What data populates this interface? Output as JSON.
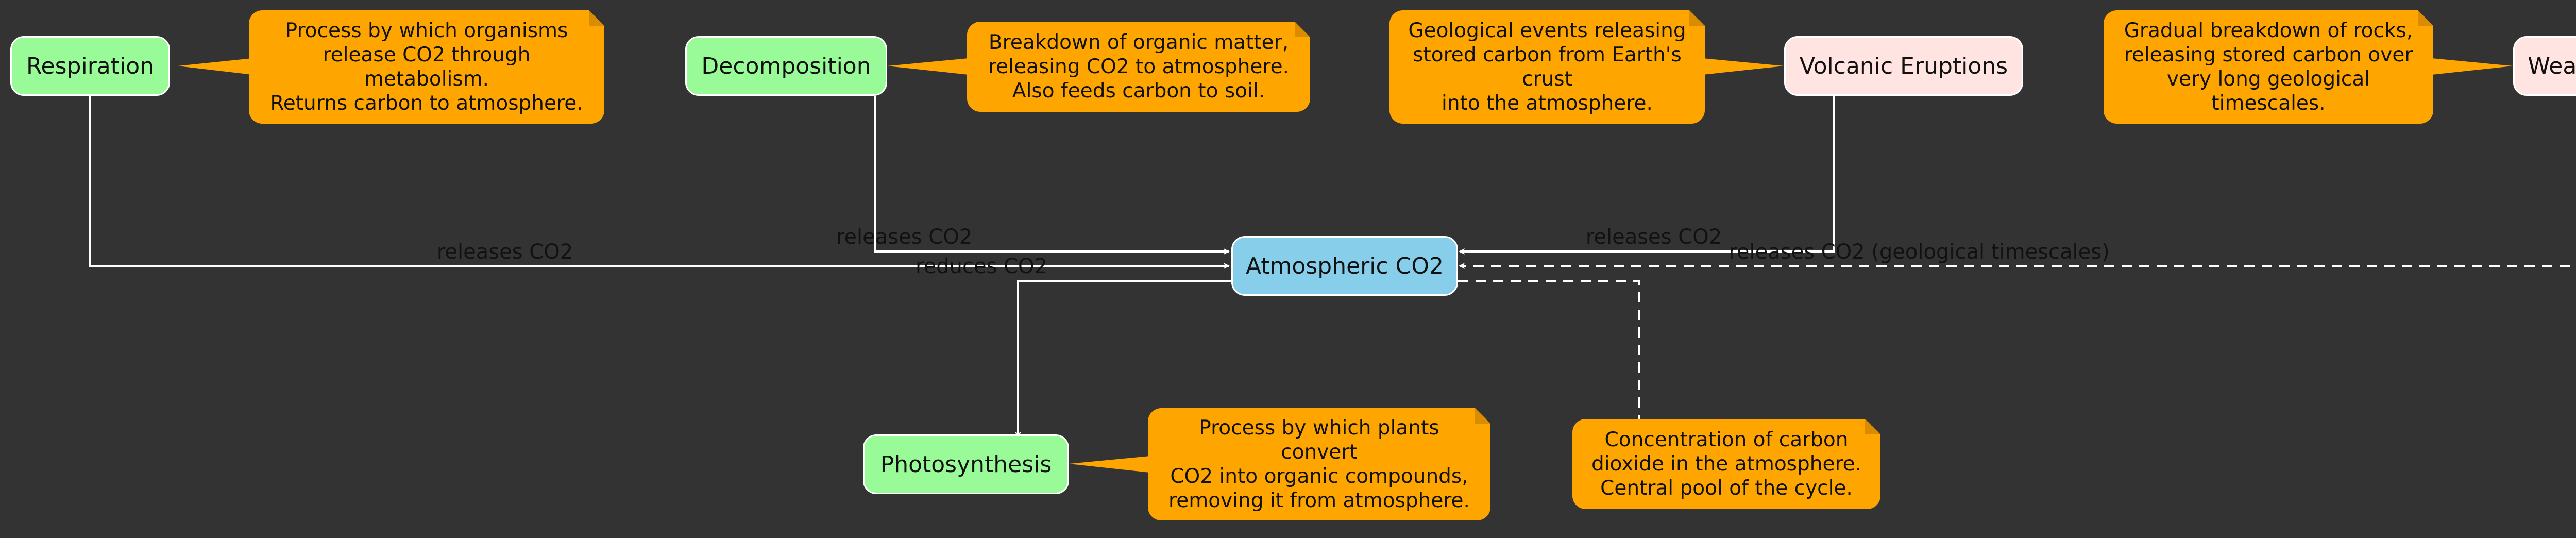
{
  "nodes": {
    "respiration": "Respiration",
    "decomposition": "Decomposition",
    "volcanic": "Volcanic Eruptions",
    "weathering": "Weathering",
    "atmospheric": "Atmospheric CO2",
    "photosynthesis": "Photosynthesis"
  },
  "notes": {
    "respiration": [
      "Process by which organisms",
      "release CO2 through",
      "metabolism.",
      "Returns carbon to atmosphere."
    ],
    "decomposition": [
      "Breakdown of organic matter,",
      "releasing CO2 to atmosphere.",
      "Also feeds carbon to soil."
    ],
    "volcanic": [
      "Geological events releasing",
      "stored carbon from Earth's",
      "crust",
      "into the atmosphere."
    ],
    "weathering": [
      "Gradual breakdown of rocks,",
      "releasing stored carbon over",
      "very long geological",
      "timescales."
    ],
    "photosynthesis": [
      "Process by which plants",
      "convert",
      "CO2 into organic compounds,",
      "removing it from atmosphere."
    ],
    "atmospheric": [
      "Concentration of carbon",
      "dioxide in the atmosphere.",
      "Central pool of the cycle."
    ]
  },
  "edges": {
    "respiration": "releases CO2",
    "decomposition": "releases CO2",
    "volcanic": "releases CO2",
    "weathering": "releases CO2 (geological timescales)",
    "photosynthesis": "reduces CO2"
  },
  "colors": {
    "background": "#333333",
    "biological_node": "#98fb98",
    "geological_node": "#ffe4e1",
    "central_node": "#87ceeb",
    "note": "#ffa500",
    "edge": "#ffffff"
  }
}
